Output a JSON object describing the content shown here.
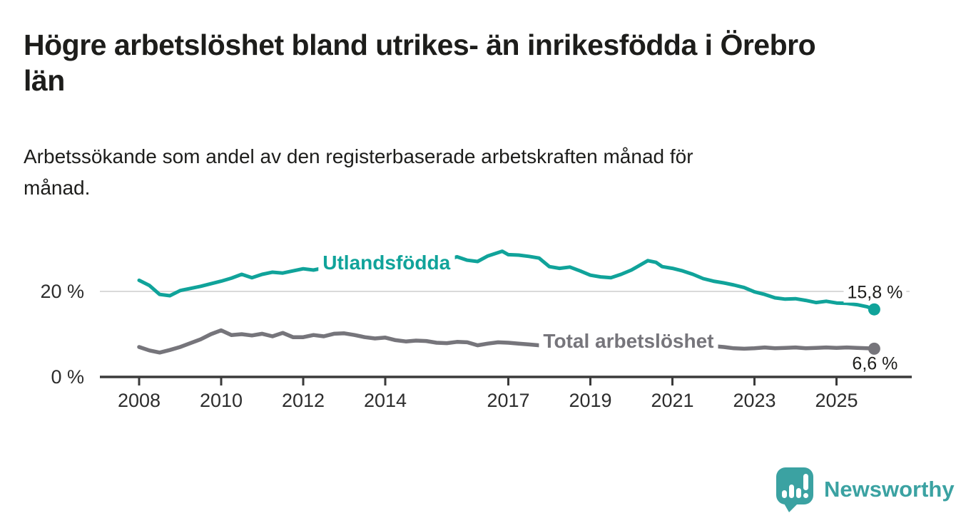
{
  "header": {
    "title": "Högre arbetslöshet bland utrikes- än inrikesfödda i Örebro län",
    "title_lines": [
      "Högre arbetslöshet bland utrikes- än inrikesfödda i Örebro",
      "län"
    ],
    "subtitle": "Arbetssökande som andel av den registerbaserade arbetskraften månad för månad.",
    "subtitle_lines": [
      "Arbetssökande som andel av den registerbaserade arbetskraften månad för",
      "månad."
    ]
  },
  "colors": {
    "accent_teal": "#10a39a",
    "series_gray": "#76757b",
    "text_dark": "#1d1d1b",
    "tick_text": "#2d2d2d",
    "axis_line": "#3a3a3a",
    "gridline": "#d9d9d9",
    "logo_teal": "#3ba2a2",
    "background": "#ffffff"
  },
  "chart_data": {
    "type": "line",
    "title": "Högre arbetslöshet bland utrikes- än inrikesfödda i Örebro län",
    "subtitle": "Arbetssökande som andel av den registerbaserade arbetskraften månad för månad.",
    "unit": "%",
    "grid": "single horizontal gridline at 20 %, baseline axis at 0 %",
    "legend_position": "inline labels on lines",
    "x_axis": {
      "range": [
        2007.9,
        2026.1
      ],
      "ticks": [
        2008,
        2010,
        2012,
        2014,
        2017,
        2019,
        2021,
        2023,
        2025
      ],
      "tick_labels": [
        "2008",
        "2010",
        "2012",
        "2014",
        "2017",
        "2019",
        "2021",
        "2023",
        "2025"
      ]
    },
    "y_axis": {
      "range": [
        0,
        31
      ],
      "ticks": [
        {
          "value": 0,
          "label": "0 %"
        },
        {
          "value": 20,
          "label": "20 %"
        }
      ]
    },
    "series": [
      {
        "id": "utlandsfodda",
        "name": "Utlandsfödda",
        "color": "#10a39a",
        "stroke_width": 5,
        "end_label": "15,8 %",
        "end_value": 15.8,
        "end_label_position": "above",
        "label_anchor": {
          "year": 2014.03,
          "value": 26.8
        },
        "points": [
          [
            2008.0,
            22.6
          ],
          [
            2008.25,
            21.4
          ],
          [
            2008.5,
            19.3
          ],
          [
            2008.75,
            19.0
          ],
          [
            2009.0,
            20.2
          ],
          [
            2009.25,
            20.7
          ],
          [
            2009.5,
            21.2
          ],
          [
            2009.75,
            21.8
          ],
          [
            2010.0,
            22.4
          ],
          [
            2010.25,
            23.1
          ],
          [
            2010.5,
            24.0
          ],
          [
            2010.75,
            23.2
          ],
          [
            2011.0,
            24.0
          ],
          [
            2011.25,
            24.5
          ],
          [
            2011.5,
            24.3
          ],
          [
            2011.75,
            24.8
          ],
          [
            2012.0,
            25.3
          ],
          [
            2012.25,
            25.0
          ],
          [
            2012.5,
            25.5
          ],
          [
            2012.75,
            25.8
          ],
          [
            2013.0,
            25.6
          ],
          [
            2013.25,
            26.0
          ],
          [
            2013.5,
            25.7
          ],
          [
            2013.75,
            26.1
          ],
          [
            2014.0,
            26.3
          ],
          [
            2014.25,
            26.0
          ],
          [
            2014.5,
            26.4
          ],
          [
            2014.75,
            26.2
          ],
          [
            2015.0,
            26.6
          ],
          [
            2015.25,
            26.9
          ],
          [
            2015.5,
            27.4
          ],
          [
            2015.75,
            28.1
          ],
          [
            2016.0,
            27.3
          ],
          [
            2016.25,
            27.0
          ],
          [
            2016.5,
            28.3
          ],
          [
            2016.85,
            29.4
          ],
          [
            2017.0,
            28.6
          ],
          [
            2017.25,
            28.5
          ],
          [
            2017.5,
            28.2
          ],
          [
            2017.75,
            27.8
          ],
          [
            2018.0,
            25.8
          ],
          [
            2018.25,
            25.4
          ],
          [
            2018.5,
            25.7
          ],
          [
            2018.75,
            24.8
          ],
          [
            2019.0,
            23.8
          ],
          [
            2019.25,
            23.4
          ],
          [
            2019.5,
            23.2
          ],
          [
            2019.75,
            24.0
          ],
          [
            2020.0,
            25.0
          ],
          [
            2020.4,
            27.2
          ],
          [
            2020.6,
            26.8
          ],
          [
            2020.75,
            25.8
          ],
          [
            2021.0,
            25.4
          ],
          [
            2021.25,
            24.8
          ],
          [
            2021.5,
            24.0
          ],
          [
            2021.75,
            23.0
          ],
          [
            2022.0,
            22.4
          ],
          [
            2022.25,
            22.0
          ],
          [
            2022.5,
            21.5
          ],
          [
            2022.75,
            20.9
          ],
          [
            2023.0,
            19.9
          ],
          [
            2023.25,
            19.3
          ],
          [
            2023.5,
            18.5
          ],
          [
            2023.75,
            18.2
          ],
          [
            2024.0,
            18.3
          ],
          [
            2024.25,
            17.9
          ],
          [
            2024.5,
            17.4
          ],
          [
            2024.75,
            17.7
          ],
          [
            2025.0,
            17.3
          ],
          [
            2025.25,
            17.2
          ],
          [
            2025.5,
            16.9
          ],
          [
            2025.75,
            16.4
          ],
          [
            2025.92,
            15.8
          ]
        ]
      },
      {
        "id": "total",
        "name": "Total arbetslöshet",
        "color": "#76757b",
        "stroke_width": 5.5,
        "end_label": "6,6 %",
        "end_value": 6.6,
        "end_label_position": "below",
        "label_anchor": {
          "year": 2019.93,
          "value": 8.5
        },
        "points": [
          [
            2008.0,
            7.0
          ],
          [
            2008.25,
            6.2
          ],
          [
            2008.5,
            5.7
          ],
          [
            2008.75,
            6.3
          ],
          [
            2009.0,
            7.0
          ],
          [
            2009.25,
            7.9
          ],
          [
            2009.5,
            8.8
          ],
          [
            2009.75,
            10.0
          ],
          [
            2010.0,
            10.9
          ],
          [
            2010.25,
            9.8
          ],
          [
            2010.5,
            10.0
          ],
          [
            2010.75,
            9.7
          ],
          [
            2011.0,
            10.1
          ],
          [
            2011.25,
            9.5
          ],
          [
            2011.5,
            10.3
          ],
          [
            2011.75,
            9.3
          ],
          [
            2012.0,
            9.3
          ],
          [
            2012.25,
            9.8
          ],
          [
            2012.5,
            9.5
          ],
          [
            2012.75,
            10.1
          ],
          [
            2013.0,
            10.2
          ],
          [
            2013.25,
            9.8
          ],
          [
            2013.5,
            9.3
          ],
          [
            2013.75,
            9.0
          ],
          [
            2014.0,
            9.2
          ],
          [
            2014.25,
            8.6
          ],
          [
            2014.5,
            8.3
          ],
          [
            2014.75,
            8.5
          ],
          [
            2015.0,
            8.4
          ],
          [
            2015.25,
            8.0
          ],
          [
            2015.5,
            7.9
          ],
          [
            2015.75,
            8.2
          ],
          [
            2016.0,
            8.1
          ],
          [
            2016.25,
            7.4
          ],
          [
            2016.5,
            7.8
          ],
          [
            2016.75,
            8.1
          ],
          [
            2017.0,
            8.0
          ],
          [
            2017.25,
            7.8
          ],
          [
            2017.5,
            7.6
          ],
          [
            2017.75,
            7.4
          ],
          [
            2018.0,
            7.4
          ],
          [
            2018.25,
            7.2
          ],
          [
            2018.5,
            7.1
          ],
          [
            2018.75,
            7.2
          ],
          [
            2019.0,
            7.3
          ],
          [
            2019.25,
            7.1
          ],
          [
            2019.5,
            7.3
          ],
          [
            2019.75,
            7.5
          ],
          [
            2020.0,
            7.8
          ],
          [
            2020.25,
            8.6
          ],
          [
            2020.5,
            9.0
          ],
          [
            2020.75,
            8.7
          ],
          [
            2021.0,
            8.5
          ],
          [
            2021.25,
            8.1
          ],
          [
            2021.5,
            7.8
          ],
          [
            2021.75,
            7.4
          ],
          [
            2022.0,
            7.2
          ],
          [
            2022.25,
            7.0
          ],
          [
            2022.5,
            6.7
          ],
          [
            2022.75,
            6.6
          ],
          [
            2023.0,
            6.7
          ],
          [
            2023.25,
            6.9
          ],
          [
            2023.5,
            6.7
          ],
          [
            2023.75,
            6.8
          ],
          [
            2024.0,
            6.9
          ],
          [
            2024.25,
            6.7
          ],
          [
            2024.5,
            6.8
          ],
          [
            2024.75,
            6.9
          ],
          [
            2025.0,
            6.8
          ],
          [
            2025.25,
            6.9
          ],
          [
            2025.5,
            6.8
          ],
          [
            2025.75,
            6.7
          ],
          [
            2025.92,
            6.6
          ]
        ]
      }
    ]
  },
  "footer": {
    "brand_name": "Newsworthy",
    "logo_icon": "bar-chart-speech-bubble"
  }
}
